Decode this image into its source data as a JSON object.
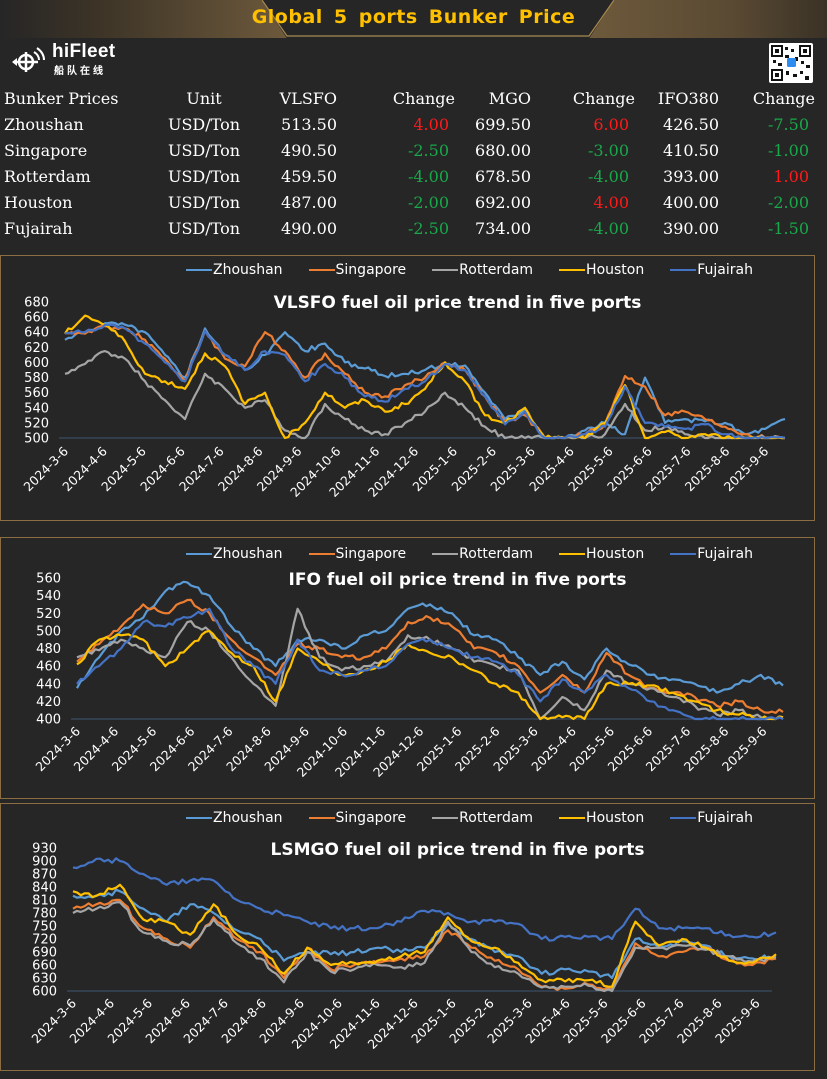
{
  "header": {
    "title": "Global  5  ports   Bunker  Price",
    "logo_text": "hiFleet",
    "logo_sub": "船队在线",
    "logo_icon": "ship-radar-icon",
    "qr_icon": "qr-code-icon"
  },
  "table": {
    "headers": [
      "Bunker Prices",
      "Unit",
      "VLSFO",
      "Change",
      "MGO",
      "Change",
      "IFO380",
      "Change"
    ],
    "rows": [
      {
        "port": "Zhoushan",
        "unit": "USD/Ton",
        "vlsfo": "513.50",
        "vlsfo_chg": "4.00",
        "mgo": "699.50",
        "mgo_chg": "6.00",
        "ifo": "426.50",
        "ifo_chg": "-7.50"
      },
      {
        "port": "Singapore",
        "unit": "USD/Ton",
        "vlsfo": "490.50",
        "vlsfo_chg": "-2.50",
        "mgo": "680.00",
        "mgo_chg": "-3.00",
        "ifo": "410.50",
        "ifo_chg": "-1.00"
      },
      {
        "port": "Rotterdam",
        "unit": "USD/Ton",
        "vlsfo": "459.50",
        "vlsfo_chg": "-4.00",
        "mgo": "678.50",
        "mgo_chg": "-4.00",
        "ifo": "393.00",
        "ifo_chg": "1.00"
      },
      {
        "port": "Houston",
        "unit": "USD/Ton",
        "vlsfo": "487.00",
        "vlsfo_chg": "-2.00",
        "mgo": "692.00",
        "mgo_chg": "4.00",
        "ifo": "400.00",
        "ifo_chg": "-2.00"
      },
      {
        "port": "Fujairah",
        "unit": "USD/Ton",
        "vlsfo": "490.00",
        "vlsfo_chg": "-2.50",
        "mgo": "734.00",
        "mgo_chg": "-4.00",
        "ifo": "390.00",
        "ifo_chg": "-1.50"
      }
    ],
    "colors": {
      "up": "#ff1a1a",
      "down": "#18a84a"
    }
  },
  "series_colors": {
    "Zhoushan": "#5b9bd5",
    "Singapore": "#ed7d31",
    "Rotterdam": "#a5a5a5",
    "Houston": "#ffc000",
    "Fujairah": "#4472c4"
  },
  "chart_data": [
    {
      "type": "line",
      "title": "VLSFO fuel oil price trend in five ports",
      "xlabel": "",
      "ylabel": "",
      "ylim": [
        500,
        680
      ],
      "yticks": [
        500,
        520,
        540,
        560,
        580,
        600,
        620,
        640,
        660,
        680
      ],
      "grid": false,
      "legend": "top",
      "categories": [
        "2024-3-6",
        "2024-4-6",
        "2024-5-6",
        "2024-6-6",
        "2024-7-6",
        "2024-8-6",
        "2024-9-6",
        "2024-10-6",
        "2024-11-6",
        "2024-12-6",
        "2025-1-6",
        "2025-2-6",
        "2025-3-6",
        "2025-4-6",
        "2025-5-6",
        "2025-6-6",
        "2025-7-6",
        "2025-8-6",
        "2025-9-6"
      ],
      "series": [
        {
          "name": "Zhoushan",
          "values": [
            630,
            640,
            652,
            650,
            640,
            610,
            580,
            645,
            610,
            590,
            610,
            640,
            615,
            625,
            600,
            592,
            582,
            585,
            590,
            598,
            596,
            560,
            525,
            538,
            500,
            500,
            510,
            520,
            505,
            580,
            520,
            525,
            522,
            520,
            505,
            512,
            525
          ]
        },
        {
          "name": "Singapore",
          "values": [
            640,
            638,
            648,
            645,
            630,
            605,
            575,
            642,
            605,
            595,
            640,
            615,
            580,
            612,
            585,
            560,
            555,
            570,
            580,
            600,
            590,
            555,
            520,
            530,
            500,
            500,
            505,
            518,
            582,
            568,
            530,
            535,
            525,
            515,
            505,
            500,
            500
          ]
        },
        {
          "name": "Rotterdam",
          "values": [
            585,
            598,
            615,
            605,
            575,
            550,
            525,
            585,
            565,
            540,
            550,
            510,
            500,
            545,
            525,
            510,
            505,
            520,
            535,
            560,
            540,
            515,
            500,
            500,
            500,
            500,
            500,
            505,
            545,
            510,
            515,
            505,
            500,
            500,
            500,
            500,
            500
          ]
        },
        {
          "name": "Houston",
          "values": [
            638,
            662,
            650,
            628,
            585,
            575,
            565,
            612,
            595,
            545,
            560,
            500,
            520,
            560,
            540,
            550,
            535,
            545,
            565,
            600,
            575,
            530,
            520,
            540,
            500,
            500,
            500,
            520,
            570,
            500,
            508,
            500,
            505,
            500,
            500,
            500,
            500
          ]
        },
        {
          "name": "Fujairah",
          "values": [
            638,
            640,
            650,
            645,
            625,
            600,
            575,
            642,
            610,
            590,
            615,
            610,
            575,
            598,
            580,
            555,
            548,
            565,
            575,
            598,
            590,
            555,
            518,
            535,
            500,
            500,
            505,
            515,
            568,
            520,
            515,
            512,
            518,
            505,
            500,
            500,
            500
          ]
        }
      ]
    },
    {
      "type": "line",
      "title": "IFO fuel oil price trend in five ports",
      "xlabel": "",
      "ylabel": "",
      "ylim": [
        400,
        560
      ],
      "yticks": [
        400,
        420,
        440,
        460,
        480,
        500,
        520,
        540,
        560
      ],
      "grid": false,
      "legend": "top",
      "categories": [
        "2024-3-6",
        "2024-4-6",
        "2024-5-6",
        "2024-6-6",
        "2024-7-6",
        "2024-8-6",
        "2024-9-6",
        "2024-10-6",
        "2024-11-6",
        "2024-12-6",
        "2025-1-6",
        "2025-2-6",
        "2025-3-6",
        "2025-4-6",
        "2025-5-6",
        "2025-6-6",
        "2025-7-6",
        "2025-8-6",
        "2025-9-6"
      ],
      "series": [
        {
          "name": "Zhoushan",
          "values": [
            435,
            470,
            500,
            515,
            545,
            555,
            540,
            505,
            480,
            460,
            490,
            490,
            480,
            495,
            500,
            525,
            530,
            520,
            495,
            490,
            470,
            450,
            465,
            445,
            480,
            462,
            450,
            445,
            440,
            430,
            440,
            450,
            438
          ]
        },
        {
          "name": "Singapore",
          "values": [
            465,
            485,
            505,
            530,
            520,
            535,
            520,
            490,
            470,
            450,
            485,
            480,
            470,
            470,
            480,
            510,
            515,
            505,
            480,
            475,
            460,
            430,
            450,
            430,
            475,
            450,
            435,
            430,
            425,
            415,
            420,
            410,
            408
          ]
        },
        {
          "name": "Rotterdam",
          "values": [
            470,
            478,
            490,
            480,
            470,
            510,
            500,
            470,
            440,
            415,
            525,
            470,
            455,
            460,
            465,
            495,
            490,
            480,
            465,
            460,
            455,
            400,
            425,
            410,
            455,
            440,
            435,
            425,
            415,
            405,
            410,
            402,
            400
          ]
        },
        {
          "name": "Houston",
          "values": [
            462,
            490,
            495,
            490,
            460,
            480,
            500,
            475,
            460,
            420,
            480,
            465,
            450,
            455,
            465,
            485,
            475,
            470,
            455,
            440,
            430,
            400,
            402,
            400,
            440,
            440,
            438,
            430,
            420,
            410,
            405,
            400,
            402
          ]
        },
        {
          "name": "Fujairah",
          "values": [
            440,
            460,
            480,
            510,
            505,
            515,
            525,
            480,
            460,
            440,
            490,
            455,
            450,
            455,
            460,
            485,
            490,
            480,
            470,
            465,
            450,
            420,
            445,
            430,
            450,
            435,
            420,
            410,
            400,
            400,
            400,
            400,
            400
          ]
        }
      ]
    },
    {
      "type": "line",
      "title": "LSMGO fuel oil price trend in five ports",
      "xlabel": "",
      "ylabel": "",
      "ylim": [
        600,
        930
      ],
      "yticks": [
        600,
        630,
        660,
        690,
        720,
        750,
        780,
        810,
        840,
        870,
        900,
        930
      ],
      "grid": false,
      "legend": "top",
      "categories": [
        "2024-3-6",
        "2024-4-6",
        "2024-5-6",
        "2024-6-6",
        "2024-7-6",
        "2024-8-6",
        "2024-9-6",
        "2024-10-6",
        "2024-11-6",
        "2024-12-6",
        "2025-1-6",
        "2025-2-6",
        "2025-3-6",
        "2025-4-6",
        "2025-5-6",
        "2025-6-6",
        "2025-7-6",
        "2025-8-6",
        "2025-9-6"
      ],
      "series": [
        {
          "name": "Zhoushan",
          "values": [
            820,
            820,
            830,
            790,
            760,
            800,
            780,
            740,
            720,
            670,
            690,
            685,
            690,
            700,
            690,
            700,
            755,
            720,
            690,
            680,
            640,
            650,
            645,
            630,
            720,
            700,
            715,
            705,
            680,
            675,
            680
          ]
        },
        {
          "name": "Singapore",
          "values": [
            790,
            800,
            810,
            745,
            720,
            700,
            770,
            720,
            690,
            630,
            700,
            650,
            660,
            665,
            675,
            680,
            740,
            700,
            670,
            650,
            610,
            605,
            615,
            605,
            710,
            680,
            690,
            700,
            670,
            660,
            675
          ]
        },
        {
          "name": "Rotterdam",
          "values": [
            780,
            790,
            805,
            735,
            715,
            705,
            765,
            710,
            675,
            620,
            690,
            645,
            650,
            660,
            655,
            665,
            760,
            690,
            655,
            640,
            608,
            610,
            612,
            600,
            700,
            700,
            705,
            695,
            680,
            668,
            678
          ]
        },
        {
          "name": "Houston",
          "values": [
            830,
            820,
            845,
            765,
            760,
            730,
            800,
            730,
            700,
            640,
            700,
            660,
            665,
            670,
            680,
            690,
            770,
            715,
            700,
            665,
            625,
            622,
            625,
            610,
            760,
            705,
            720,
            700,
            670,
            665,
            685
          ]
        },
        {
          "name": "Fujairah",
          "values": [
            885,
            905,
            900,
            870,
            845,
            855,
            855,
            810,
            790,
            775,
            760,
            745,
            745,
            745,
            760,
            785,
            780,
            760,
            760,
            755,
            720,
            725,
            725,
            720,
            790,
            745,
            745,
            745,
            730,
            725,
            735
          ]
        }
      ]
    }
  ]
}
